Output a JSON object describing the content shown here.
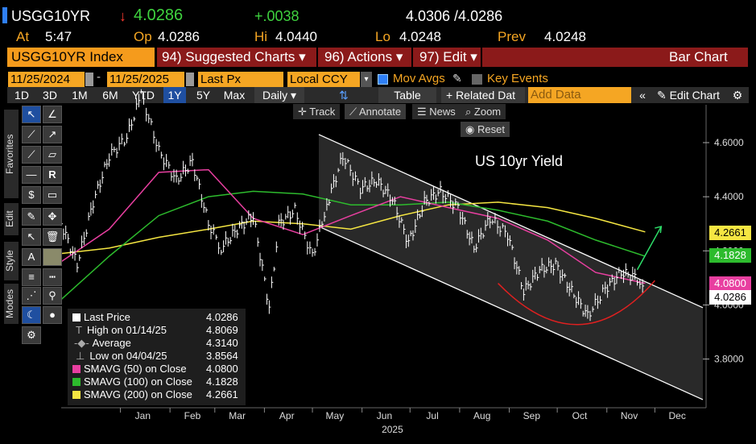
{
  "header": {
    "ticker": "USGG10YR",
    "arrow": "↓",
    "last": "4.0286",
    "change": "+.0038",
    "bidask": "4.0306 /4.0286",
    "at_label": "At",
    "at_value": "5:47",
    "op_label": "Op",
    "op_value": "4.0286",
    "hi_label": "Hi",
    "hi_value": "4.0440",
    "lo_label": "Lo",
    "lo_value": "4.0248",
    "prev_label": "Prev",
    "prev_value": "4.0248"
  },
  "menubar": {
    "security": "USGG10YR Index",
    "suggested": "94) Suggested Charts ▾",
    "actions": "96) Actions ▾",
    "edit": "97) Edit ▾",
    "chart_type": "Bar Chart"
  },
  "inputs": {
    "start_date": "11/25/2024",
    "end_date": "11/25/2025",
    "field": "Last Px",
    "currency": "Local CCY",
    "mov_avgs": "Mov Avgs",
    "key_events": "Key Events"
  },
  "toolbar": {
    "periods": [
      "1D",
      "3D",
      "1M",
      "6M",
      "YTD",
      "1Y",
      "5Y",
      "Max"
    ],
    "active_period": "1Y",
    "frequency": "Daily ▾",
    "table": "Table",
    "related": "+ Related Dat",
    "add_data_placeholder": "Add Data",
    "edit_chart": "Edit Chart"
  },
  "chart_tools": {
    "track": "Track",
    "annotate": "Annotate",
    "news": "News",
    "zoom": "Zoom",
    "reset": "Reset"
  },
  "side_tabs": [
    "Favorites",
    "Edit",
    "Style",
    "Modes"
  ],
  "legend": {
    "rows": [
      {
        "label": "Last Price",
        "value": "4.0286",
        "color": "#ffffff"
      },
      {
        "label": "High on 01/14/25",
        "value": "4.8069",
        "color": ""
      },
      {
        "label": "Average",
        "value": "4.3140",
        "color": ""
      },
      {
        "label": "Low on 04/04/25",
        "value": "3.8564",
        "color": ""
      },
      {
        "label": "SMAVG (50)  on Close",
        "value": "4.0800",
        "color": "#e83fa0"
      },
      {
        "label": "SMAVG (100)  on Close",
        "value": "4.1828",
        "color": "#2dbb2d"
      },
      {
        "label": "SMAVG (200)  on Close",
        "value": "4.2661",
        "color": "#f5e642"
      }
    ]
  },
  "price_tags": [
    {
      "text": "4.2661",
      "color": "#f5e642",
      "y": 4.2661
    },
    {
      "text": "4.1828",
      "color": "#2dbb2d",
      "y": 4.1828
    },
    {
      "text": "4.0800",
      "color": "#e83fa0",
      "y": 4.08
    },
    {
      "text": "4.0286",
      "color": "#ffffff",
      "y": 4.0286
    }
  ],
  "chart_data": {
    "type": "line",
    "title": "US 10yr Yield",
    "x_ticks": [
      "Jan",
      "Feb",
      "Mar",
      "Apr",
      "May",
      "Jun",
      "Jul",
      "Aug",
      "Sep",
      "Oct",
      "Nov",
      "Dec"
    ],
    "year_label": "2025",
    "y_ticks": [
      "4.6000",
      "4.4000",
      "4.2000",
      "4.0000",
      "3.8000"
    ],
    "ylim": [
      3.62,
      4.74
    ],
    "series": [
      {
        "name": "Last Price",
        "color": "#ffffff",
        "x": [
          "2024-11-25",
          "2024-12-05",
          "2024-12-15",
          "2024-12-25",
          "2025-01-05",
          "2025-01-14",
          "2025-01-25",
          "2025-02-05",
          "2025-02-15",
          "2025-02-25",
          "2025-03-05",
          "2025-03-15",
          "2025-03-25",
          "2025-04-04",
          "2025-04-10",
          "2025-04-20",
          "2025-05-01",
          "2025-05-10",
          "2025-05-20",
          "2025-05-31",
          "2025-06-10",
          "2025-06-20",
          "2025-06-30",
          "2025-07-10",
          "2025-07-20",
          "2025-07-31",
          "2025-08-10",
          "2025-08-20",
          "2025-08-31",
          "2025-09-10",
          "2025-09-20",
          "2025-09-30",
          "2025-10-10",
          "2025-10-20",
          "2025-10-31",
          "2025-11-10",
          "2025-11-20",
          "2025-11-25"
        ],
        "y": [
          4.3,
          4.15,
          4.38,
          4.55,
          4.62,
          4.78,
          4.57,
          4.46,
          4.53,
          4.3,
          4.21,
          4.28,
          4.33,
          3.99,
          4.3,
          4.35,
          4.18,
          4.37,
          4.55,
          4.43,
          4.46,
          4.39,
          4.23,
          4.38,
          4.42,
          4.36,
          4.21,
          4.32,
          4.26,
          4.05,
          4.13,
          4.15,
          4.05,
          3.96,
          4.06,
          4.12,
          4.1,
          4.03
        ]
      },
      {
        "name": "SMAVG (50)",
        "color": "#e83fa0",
        "x": [
          "2024-11-25",
          "2024-12-25",
          "2025-01-25",
          "2025-02-25",
          "2025-03-25",
          "2025-04-25",
          "2025-05-25",
          "2025-06-25",
          "2025-07-25",
          "2025-08-25",
          "2025-09-25",
          "2025-10-25",
          "2025-11-25"
        ],
        "y": [
          4.16,
          4.28,
          4.49,
          4.5,
          4.32,
          4.26,
          4.33,
          4.4,
          4.36,
          4.32,
          4.24,
          4.12,
          4.08
        ]
      },
      {
        "name": "SMAVG (100)",
        "color": "#2dbb2d",
        "x": [
          "2024-11-25",
          "2024-12-25",
          "2025-01-25",
          "2025-02-25",
          "2025-03-25",
          "2025-04-25",
          "2025-05-25",
          "2025-06-25",
          "2025-07-25",
          "2025-08-25",
          "2025-09-25",
          "2025-10-25",
          "2025-11-25"
        ],
        "y": [
          4.02,
          4.18,
          4.33,
          4.4,
          4.42,
          4.41,
          4.37,
          4.37,
          4.38,
          4.35,
          4.31,
          4.24,
          4.18
        ]
      },
      {
        "name": "SMAVG (200)",
        "color": "#f5e642",
        "x": [
          "2024-11-25",
          "2024-12-25",
          "2025-01-25",
          "2025-02-25",
          "2025-03-25",
          "2025-04-25",
          "2025-05-25",
          "2025-06-25",
          "2025-07-25",
          "2025-08-25",
          "2025-09-25",
          "2025-10-25",
          "2025-11-25"
        ],
        "y": [
          4.19,
          4.21,
          4.25,
          4.28,
          4.31,
          4.3,
          4.28,
          4.33,
          4.37,
          4.38,
          4.36,
          4.32,
          4.27
        ]
      }
    ],
    "grid": false,
    "legend_position": "bottom-left"
  }
}
